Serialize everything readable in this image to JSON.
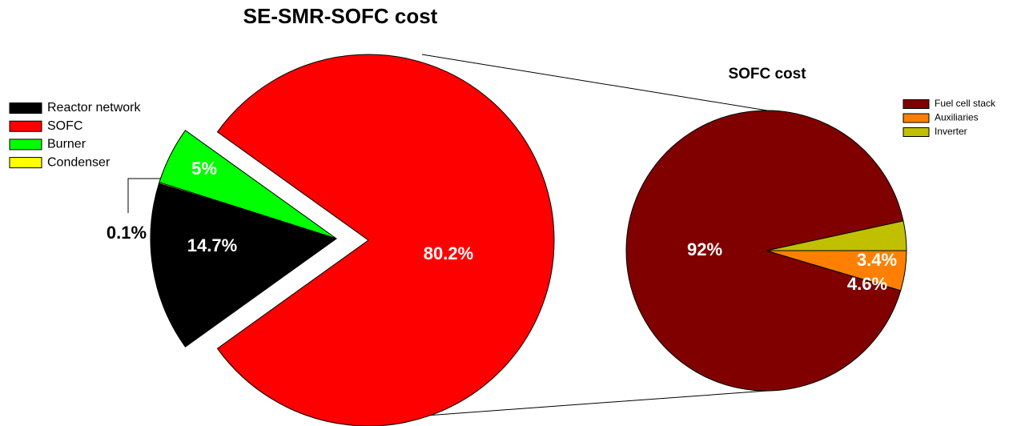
{
  "chart_data": [
    {
      "type": "pie",
      "title": "SE-SMR-SOFC cost",
      "categories": [
        "Reactor network",
        "SOFC",
        "Burner",
        "Condenser"
      ],
      "values": [
        14.7,
        80.2,
        5,
        0.1
      ],
      "value_labels": [
        "14.7%",
        "80.2%",
        "5%",
        "0.1%"
      ],
      "colors": [
        "#000000",
        "#ff0000",
        "#00ff00",
        "#ffff00"
      ],
      "legend": "left"
    },
    {
      "type": "pie",
      "title": "SOFC cost",
      "categories": [
        "Fuel cell stack",
        "Auxiliaries",
        "Inverter"
      ],
      "values": [
        92,
        4.6,
        3.4
      ],
      "value_labels": [
        "92%",
        "4.6%",
        "3.4%"
      ],
      "colors": [
        "#800000",
        "#ff8000",
        "#c0c000"
      ],
      "legend": "upper right"
    }
  ]
}
